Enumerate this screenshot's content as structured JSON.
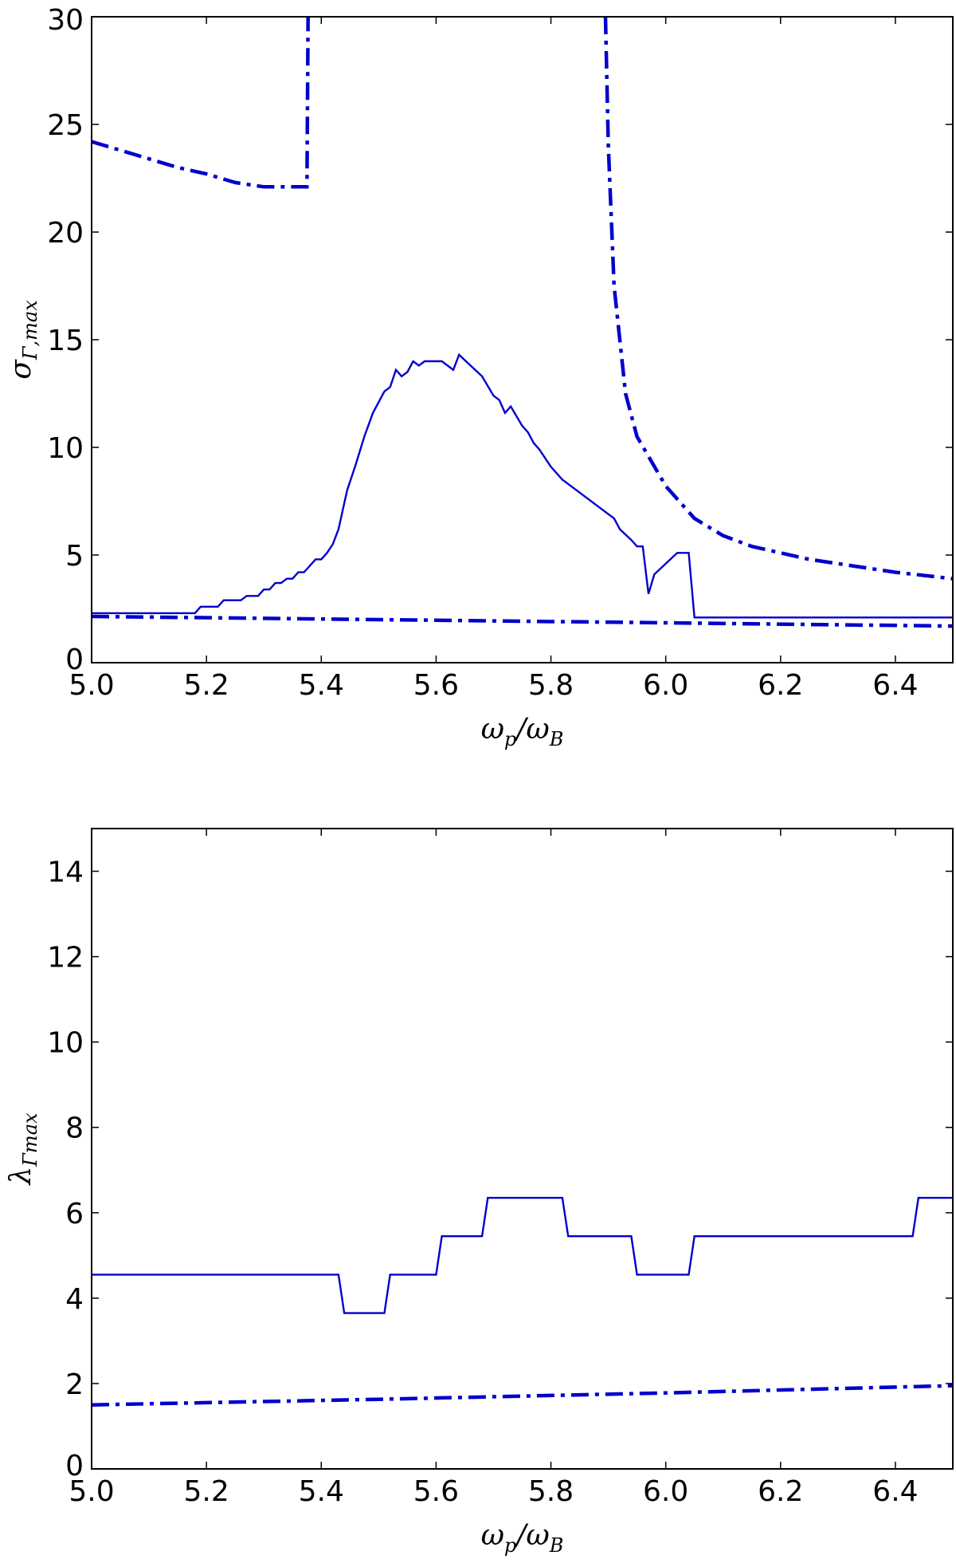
{
  "chart_data": [
    {
      "type": "line",
      "xlabel_base": "ω",
      "xlabel_sub1": "p",
      "xlabel_mid": "/ω",
      "xlabel_sub2": "B",
      "ylabel_base": "σ",
      "ylabel_sub": "Γ,max",
      "xlim": [
        5.0,
        6.5
      ],
      "ylim": [
        0,
        30
      ],
      "xticks": [
        "5.0",
        "5.2",
        "5.4",
        "5.6",
        "5.8",
        "6.0",
        "6.2",
        "6.4"
      ],
      "yticks": [
        "0",
        "5",
        "10",
        "15",
        "20",
        "25",
        "30"
      ],
      "grid": false,
      "series": [
        {
          "style": "solid",
          "points": [
            [
              5.0,
              2.3
            ],
            [
              5.18,
              2.3
            ],
            [
              5.19,
              2.6
            ],
            [
              5.22,
              2.6
            ],
            [
              5.23,
              2.9
            ],
            [
              5.26,
              2.9
            ],
            [
              5.27,
              3.1
            ],
            [
              5.29,
              3.1
            ],
            [
              5.3,
              3.4
            ],
            [
              5.31,
              3.4
            ],
            [
              5.32,
              3.7
            ],
            [
              5.33,
              3.7
            ],
            [
              5.34,
              3.9
            ],
            [
              5.35,
              3.9
            ],
            [
              5.36,
              4.2
            ],
            [
              5.37,
              4.2
            ],
            [
              5.38,
              4.5
            ],
            [
              5.39,
              4.8
            ],
            [
              5.4,
              4.8
            ],
            [
              5.41,
              5.1
            ],
            [
              5.42,
              5.5
            ],
            [
              5.43,
              6.2
            ],
            [
              5.445,
              8.0
            ],
            [
              5.46,
              9.2
            ],
            [
              5.475,
              10.5
            ],
            [
              5.49,
              11.6
            ],
            [
              5.51,
              12.6
            ],
            [
              5.52,
              12.8
            ],
            [
              5.53,
              13.6
            ],
            [
              5.54,
              13.3
            ],
            [
              5.55,
              13.5
            ],
            [
              5.56,
              14.0
            ],
            [
              5.57,
              13.8
            ],
            [
              5.58,
              14.0
            ],
            [
              5.61,
              14.0
            ],
            [
              5.63,
              13.6
            ],
            [
              5.64,
              14.3
            ],
            [
              5.66,
              13.8
            ],
            [
              5.68,
              13.3
            ],
            [
              5.7,
              12.4
            ],
            [
              5.71,
              12.2
            ],
            [
              5.72,
              11.6
            ],
            [
              5.73,
              11.9
            ],
            [
              5.75,
              11.0
            ],
            [
              5.76,
              10.7
            ],
            [
              5.77,
              10.2
            ],
            [
              5.78,
              9.9
            ],
            [
              5.8,
              9.1
            ],
            [
              5.82,
              8.5
            ],
            [
              5.85,
              7.9
            ],
            [
              5.88,
              7.3
            ],
            [
              5.91,
              6.7
            ],
            [
              5.92,
              6.2
            ],
            [
              5.94,
              5.7
            ],
            [
              5.95,
              5.4
            ],
            [
              5.96,
              5.4
            ],
            [
              5.97,
              3.2
            ],
            [
              5.98,
              4.1
            ],
            [
              6.0,
              4.6
            ],
            [
              6.02,
              5.1
            ],
            [
              6.04,
              5.1
            ],
            [
              6.05,
              2.1
            ],
            [
              6.5,
              2.1
            ]
          ]
        },
        {
          "style": "dashdot",
          "points": [
            [
              5.0,
              24.2
            ],
            [
              5.05,
              23.8
            ],
            [
              5.1,
              23.4
            ],
            [
              5.15,
              23.0
            ],
            [
              5.2,
              22.7
            ],
            [
              5.25,
              22.3
            ],
            [
              5.3,
              22.1
            ],
            [
              5.375,
              22.1
            ],
            [
              5.377,
              30
            ]
          ]
        },
        {
          "style": "dashdot",
          "points": [
            [
              5.895,
              30
            ],
            [
              5.9,
              24.0
            ],
            [
              5.91,
              17.5
            ],
            [
              5.93,
              12.5
            ],
            [
              5.95,
              10.5
            ],
            [
              6.0,
              8.2
            ],
            [
              6.05,
              6.7
            ],
            [
              6.1,
              5.9
            ],
            [
              6.15,
              5.4
            ],
            [
              6.2,
              5.1
            ],
            [
              6.25,
              4.8
            ],
            [
              6.3,
              4.6
            ],
            [
              6.35,
              4.4
            ],
            [
              6.4,
              4.2
            ],
            [
              6.45,
              4.05
            ],
            [
              6.5,
              3.9
            ]
          ]
        },
        {
          "style": "dashdot",
          "points": [
            [
              5.0,
              2.15
            ],
            [
              5.5,
              2.0
            ],
            [
              6.0,
              1.85
            ],
            [
              6.5,
              1.7
            ]
          ]
        }
      ]
    },
    {
      "type": "line",
      "xlabel_base": "ω",
      "xlabel_sub1": "p",
      "xlabel_mid": "/ω",
      "xlabel_sub2": "B",
      "ylabel_base": "λ",
      "ylabel_sub": "Γmax",
      "xlim": [
        5.0,
        6.5
      ],
      "ylim": [
        0,
        15
      ],
      "xticks": [
        "5.0",
        "5.2",
        "5.4",
        "5.6",
        "5.8",
        "6.0",
        "6.2",
        "6.4"
      ],
      "yticks": [
        "0",
        "2",
        "4",
        "6",
        "8",
        "10",
        "12",
        "14"
      ],
      "grid": false,
      "series": [
        {
          "style": "solid",
          "points": [
            [
              5.0,
              4.55
            ],
            [
              5.43,
              4.55
            ],
            [
              5.44,
              3.65
            ],
            [
              5.51,
              3.65
            ],
            [
              5.52,
              4.55
            ],
            [
              5.6,
              4.55
            ],
            [
              5.61,
              5.45
            ],
            [
              5.68,
              5.45
            ],
            [
              5.69,
              6.35
            ],
            [
              5.82,
              6.35
            ],
            [
              5.83,
              5.45
            ],
            [
              5.94,
              5.45
            ],
            [
              5.95,
              4.55
            ],
            [
              6.04,
              4.55
            ],
            [
              6.05,
              5.45
            ],
            [
              6.43,
              5.45
            ],
            [
              6.44,
              6.35
            ],
            [
              6.5,
              6.35
            ]
          ]
        },
        {
          "style": "dashdot",
          "points": [
            [
              5.0,
              1.5
            ],
            [
              5.5,
              1.63
            ],
            [
              6.0,
              1.78
            ],
            [
              6.5,
              1.95
            ]
          ]
        }
      ]
    }
  ]
}
